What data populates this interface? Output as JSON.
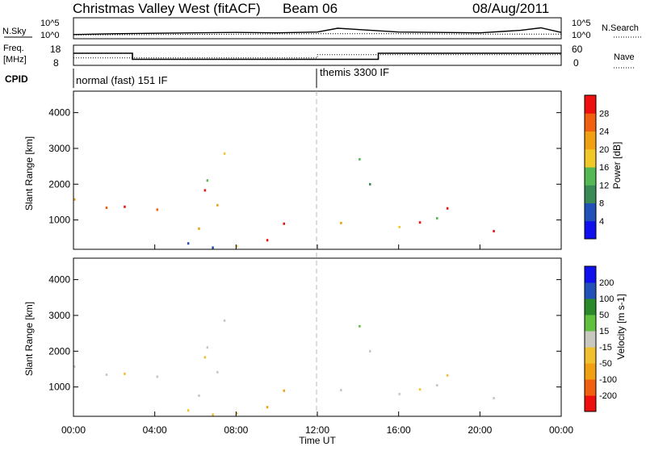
{
  "header": {
    "station": "Christmas Valley West (fitACF)",
    "beam": "Beam 06",
    "date": "08/Aug/2011"
  },
  "noise_panel": {
    "left_label": "N.Sky",
    "left_ticks": [
      "10^5",
      "10^0"
    ],
    "right_ticks": [
      "10^5",
      "10^0"
    ],
    "right_label": "N.Search"
  },
  "freq_panel": {
    "left_label_line1": "Freq.",
    "left_label_line2": "[MHz]",
    "left_ticks": [
      "18",
      "8"
    ],
    "right_ticks": [
      "60",
      "0"
    ],
    "right_label": "Nave"
  },
  "cpid_panel": {
    "label": "CPID",
    "modes": [
      "normal (fast) 151 IF",
      "themis 3300 IF"
    ]
  },
  "x_axis": {
    "label": "Time UT",
    "ticks": [
      "00:00",
      "04:00",
      "08:00",
      "12:00",
      "16:00",
      "20:00",
      "00:00"
    ]
  },
  "colors": {
    "power": [
      "#1010ee",
      "#2050b8",
      "#3a8a55",
      "#55b855",
      "#f0c828",
      "#f0a010",
      "#f06010",
      "#ee1010"
    ],
    "velocity": [
      "#ee1010",
      "#f06010",
      "#f0a010",
      "#f0c030",
      "#c8c8c0",
      "#60c040",
      "#2a8a2a",
      "#2050b8",
      "#1010ee"
    ]
  },
  "chart_data": [
    {
      "type": "line",
      "title": "Christmas Valley West (fitACF)",
      "series": [
        {
          "name": "N.Sky",
          "x": [
            0,
            2,
            4,
            6,
            8,
            10,
            12,
            13,
            14,
            16,
            18,
            20,
            22,
            23,
            24
          ],
          "y": [
            1.0,
            1.2,
            1.3,
            1.4,
            1.5,
            1.4,
            1.6,
            2.5,
            2.2,
            1.6,
            1.5,
            1.4,
            2.0,
            2.6,
            1.5
          ]
        },
        {
          "name": "N.Search",
          "x": [
            0,
            4,
            8,
            12,
            16,
            20,
            24
          ],
          "y": [
            0.9,
            1.0,
            1.1,
            1.2,
            1.2,
            1.1,
            1.1
          ]
        }
      ],
      "xlabel": "",
      "ylabel": "N.Sky",
      "xlim": [
        0,
        24
      ],
      "y_scale": "log"
    },
    {
      "type": "line",
      "series": [
        {
          "name": "Freq.",
          "x": [
            0,
            2.9,
            2.9,
            12,
            12,
            15,
            15,
            24
          ],
          "y": [
            14,
            14,
            11,
            11,
            11,
            11,
            14,
            14
          ]
        },
        {
          "name": "Nave",
          "x": [
            0,
            12,
            12,
            24
          ],
          "y": [
            22,
            22,
            32,
            32
          ]
        }
      ],
      "xlim": [
        0,
        24
      ],
      "ylim": [
        8,
        18
      ],
      "ylabel": "Freq. [MHz]"
    },
    {
      "type": "heatmap",
      "xlabel": "Time UT",
      "ylabel": "Slant Range [km]",
      "colorbar_label": "Power [dB]",
      "colorbar_ticks": [
        4,
        8,
        12,
        16,
        20,
        24,
        28
      ],
      "xlim": [
        0,
        24
      ],
      "ylim": [
        180,
        4600
      ],
      "y_ticks": [
        1000,
        2000,
        3000,
        4000
      ]
    },
    {
      "type": "heatmap",
      "xlabel": "Time UT",
      "ylabel": "Slant Range [km]",
      "colorbar_label": "Velocity [m s-1]",
      "colorbar_ticks": [
        200,
        100,
        50,
        15,
        -15,
        -50,
        -100,
        -200
      ],
      "xlim": [
        0,
        24
      ],
      "ylim": [
        180,
        4600
      ],
      "y_ticks": [
        1000,
        2000,
        3000,
        4000
      ]
    }
  ]
}
